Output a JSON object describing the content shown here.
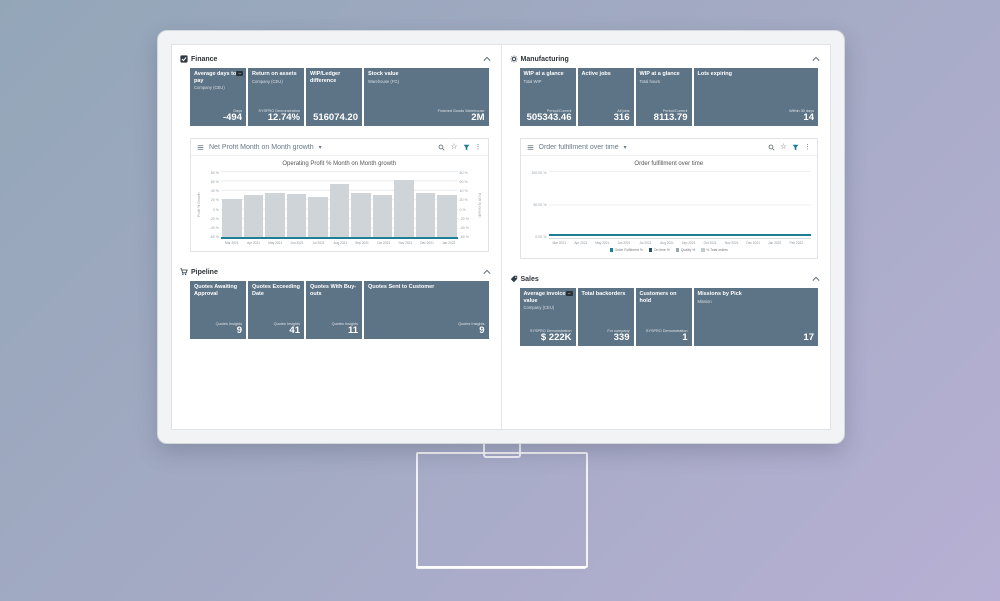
{
  "icons": {
    "dropdown_caret": "▾",
    "star": "☆",
    "kebab": "⋮"
  },
  "finance": {
    "header": "Finance",
    "card_title": "Net Profit Month on Month growth",
    "tiles": [
      {
        "title": "Average days to pay",
        "badge": "–",
        "subtitle": "Company (CEU)",
        "footnote": "Days",
        "value": "-494"
      },
      {
        "title": "Return on assets",
        "subtitle": "Company (CEU)",
        "footnote": "SYSPRO Demonstration",
        "value": "12.74%"
      },
      {
        "title": "WIP/Ledger difference",
        "subtitle": "",
        "footnote": "",
        "value": "516074.20"
      },
      {
        "title": "Stock value",
        "subtitle": "Warehouse (FG)",
        "footnote": "Finished Goods Warehouse",
        "value": "2M"
      }
    ]
  },
  "manufacturing": {
    "header": "Manufacturing",
    "card_title": "Order fulfillment over time",
    "tiles": [
      {
        "title": "WIP at a glance",
        "subtitle": "Total WIP",
        "footnote": "Period/Current",
        "value": "505343.46"
      },
      {
        "title": "Active jobs",
        "subtitle": "",
        "footnote": "All jobs",
        "value": "316"
      },
      {
        "title": "WIP at a glance",
        "subtitle": "Total hours",
        "footnote": "Period/Current",
        "value": "8113.79"
      },
      {
        "title": "Lots expiring",
        "subtitle": "",
        "footnote": "Within 30 days",
        "value": "14"
      }
    ]
  },
  "pipeline": {
    "header": "Pipeline",
    "tiles": [
      {
        "title": "Quotes Awaiting Approval",
        "footnote": "Quotes Insights",
        "value": "9"
      },
      {
        "title": "Quotes Exceeding Date",
        "footnote": "Quotes Insights",
        "value": "41"
      },
      {
        "title": "Quotes With Buy-outs",
        "footnote": "Quotes Insights",
        "value": "11"
      },
      {
        "title": "Quotes Sent to Customer",
        "footnote": "Quotes Insights",
        "value": "9"
      }
    ]
  },
  "sales": {
    "header": "Sales",
    "tiles": [
      {
        "title": "Average invoice value",
        "badge": "–",
        "subtitle": "Company (CEU)",
        "footnote": "SYSPRO Demonstration",
        "value": "$ 222K"
      },
      {
        "title": "Total backorders",
        "subtitle": "",
        "footnote": "For company",
        "value": "339"
      },
      {
        "title": "Customers on hold",
        "subtitle": "",
        "footnote": "SYSPRO Demonstration",
        "value": "1"
      },
      {
        "title": "Missions by Pick",
        "subtitle": "Mission",
        "footnote": "",
        "value": "17"
      }
    ]
  },
  "chart_data": [
    {
      "id": "operating-profit",
      "type": "bar",
      "title": "Operating Profit % Month on Month growth",
      "ylabel": "Profit % Growth",
      "ylim": [
        -60,
        80
      ],
      "yticks": [
        "80 %",
        "60 %",
        "40 %",
        "20 %",
        "0 %",
        "-20 %",
        "-40 %",
        "-60 %"
      ],
      "categories": [
        "Mar 2021",
        "Apr 2021",
        "May 2021",
        "Jun 2021",
        "Jul 2021",
        "Aug 2021",
        "Sep 2021",
        "Oct 2021",
        "Nov 2021",
        "Dec 2021",
        "Jan 2022"
      ],
      "values": [
        20,
        30,
        33,
        32,
        25,
        52,
        33,
        30,
        62,
        33,
        30
      ],
      "bar_color": "#cfd4d8",
      "baseline_color": "#1d7f93",
      "grid": true,
      "legend_position": "none"
    },
    {
      "id": "order-fulfillment",
      "type": "line",
      "title": "Order fulfillment over time",
      "ylim": [
        0,
        100
      ],
      "yticks": [
        "100.00 %",
        "50.00 %",
        "0.00 %"
      ],
      "x": [
        "Mar 2021",
        "Apr 2021",
        "May 2021",
        "Jun 2021",
        "Jul 2021",
        "Aug 2021",
        "Sep 2021",
        "Oct 2021",
        "Nov 2021",
        "Dec 2021",
        "Jan 2022",
        "Feb 2022"
      ],
      "series": [
        {
          "name": "Order Fulfilment %",
          "color": "#1d7f93",
          "values": [
            3,
            3,
            3,
            3,
            3,
            3,
            3,
            3,
            3,
            3,
            3,
            3
          ]
        }
      ],
      "legend": [
        {
          "label": "Order Fulfilment %",
          "color": "#1d7f93"
        },
        {
          "label": "On time %",
          "color": "#27505e"
        },
        {
          "label": "Quality %",
          "color": "#9aa5ac"
        },
        {
          "label": "% Total orders",
          "color": "#c4ccd1"
        }
      ],
      "legend_position": "bottom",
      "grid": true
    }
  ]
}
